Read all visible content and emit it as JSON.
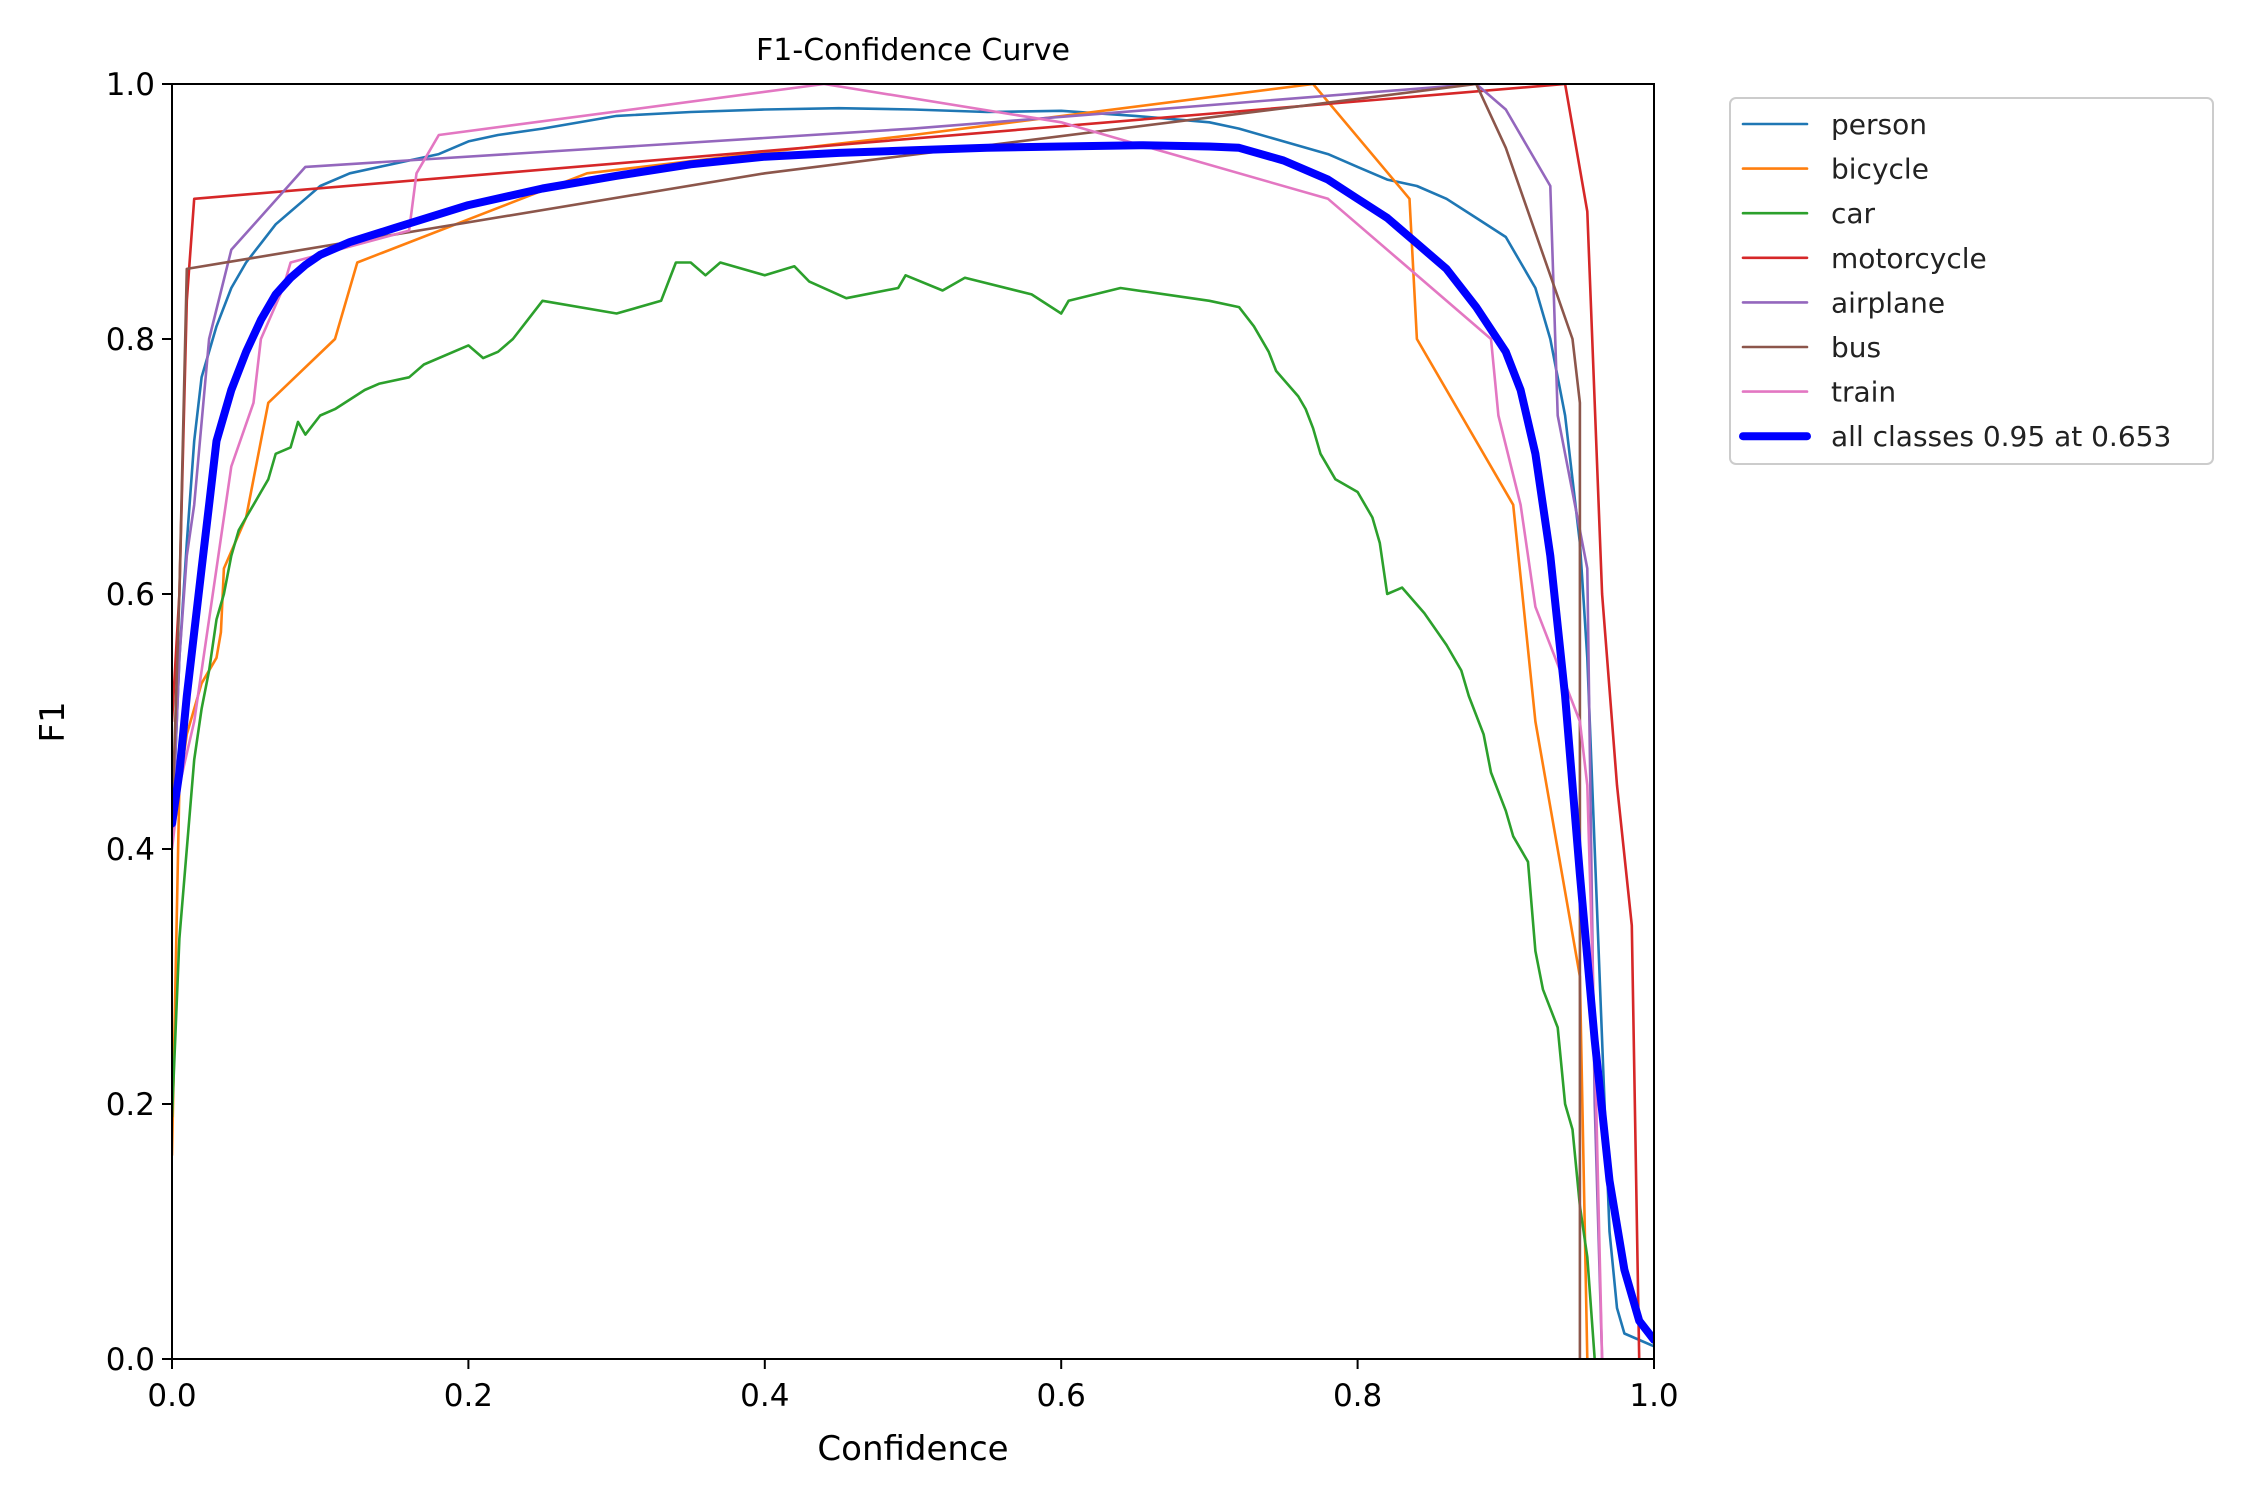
{
  "chart_data": {
    "type": "line",
    "title": "F1-Confidence Curve",
    "xlabel": "Confidence",
    "ylabel": "F1",
    "xlim": [
      0,
      1
    ],
    "ylim": [
      0,
      1
    ],
    "xticks": [
      "0.0",
      "0.2",
      "0.4",
      "0.6",
      "0.8",
      "1.0"
    ],
    "yticks": [
      "0.0",
      "0.2",
      "0.4",
      "0.6",
      "0.8",
      "1.0"
    ],
    "grid": false,
    "legend_position": "outside-top-right",
    "series": [
      {
        "name": "person",
        "color": "#1f77b4",
        "width": "thin",
        "points": [
          [
            0,
            0.41
          ],
          [
            0.005,
            0.55
          ],
          [
            0.01,
            0.64
          ],
          [
            0.015,
            0.72
          ],
          [
            0.02,
            0.77
          ],
          [
            0.03,
            0.81
          ],
          [
            0.04,
            0.84
          ],
          [
            0.05,
            0.86
          ],
          [
            0.06,
            0.875
          ],
          [
            0.07,
            0.89
          ],
          [
            0.08,
            0.9
          ],
          [
            0.09,
            0.91
          ],
          [
            0.1,
            0.92
          ],
          [
            0.12,
            0.93
          ],
          [
            0.14,
            0.935
          ],
          [
            0.16,
            0.94
          ],
          [
            0.18,
            0.945
          ],
          [
            0.2,
            0.955
          ],
          [
            0.22,
            0.96
          ],
          [
            0.25,
            0.965
          ],
          [
            0.3,
            0.975
          ],
          [
            0.35,
            0.978
          ],
          [
            0.4,
            0.98
          ],
          [
            0.45,
            0.981
          ],
          [
            0.5,
            0.98
          ],
          [
            0.55,
            0.978
          ],
          [
            0.6,
            0.979
          ],
          [
            0.65,
            0.975
          ],
          [
            0.7,
            0.97
          ],
          [
            0.72,
            0.965
          ],
          [
            0.75,
            0.955
          ],
          [
            0.78,
            0.945
          ],
          [
            0.8,
            0.935
          ],
          [
            0.82,
            0.925
          ],
          [
            0.84,
            0.92
          ],
          [
            0.86,
            0.91
          ],
          [
            0.88,
            0.895
          ],
          [
            0.9,
            0.88
          ],
          [
            0.91,
            0.86
          ],
          [
            0.92,
            0.84
          ],
          [
            0.93,
            0.8
          ],
          [
            0.94,
            0.74
          ],
          [
            0.95,
            0.64
          ],
          [
            0.955,
            0.55
          ],
          [
            0.96,
            0.4
          ],
          [
            0.965,
            0.25
          ],
          [
            0.97,
            0.1
          ],
          [
            0.975,
            0.04
          ],
          [
            0.98,
            0.02
          ],
          [
            1.0,
            0.01
          ]
        ]
      },
      {
        "name": "bicycle",
        "color": "#ff7f0e",
        "width": "thin",
        "points": [
          [
            0,
            0.16
          ],
          [
            0.005,
            0.45
          ],
          [
            0.01,
            0.49
          ],
          [
            0.02,
            0.53
          ],
          [
            0.03,
            0.55
          ],
          [
            0.033,
            0.57
          ],
          [
            0.035,
            0.62
          ],
          [
            0.05,
            0.66
          ],
          [
            0.065,
            0.75
          ],
          [
            0.11,
            0.8
          ],
          [
            0.125,
            0.86
          ],
          [
            0.28,
            0.93
          ],
          [
            0.5,
            0.96
          ],
          [
            0.77,
            1.0
          ],
          [
            0.835,
            0.91
          ],
          [
            0.84,
            0.8
          ],
          [
            0.905,
            0.67
          ],
          [
            0.92,
            0.5
          ],
          [
            0.95,
            0.3
          ],
          [
            0.955,
            0.0
          ]
        ]
      },
      {
        "name": "car",
        "color": "#2ca02c",
        "width": "thin",
        "points": [
          [
            0,
            0.19
          ],
          [
            0.005,
            0.33
          ],
          [
            0.01,
            0.4
          ],
          [
            0.015,
            0.47
          ],
          [
            0.02,
            0.51
          ],
          [
            0.025,
            0.54
          ],
          [
            0.03,
            0.58
          ],
          [
            0.035,
            0.6
          ],
          [
            0.04,
            0.63
          ],
          [
            0.045,
            0.65
          ],
          [
            0.05,
            0.66
          ],
          [
            0.055,
            0.67
          ],
          [
            0.06,
            0.68
          ],
          [
            0.065,
            0.69
          ],
          [
            0.07,
            0.71
          ],
          [
            0.08,
            0.715
          ],
          [
            0.085,
            0.735
          ],
          [
            0.09,
            0.725
          ],
          [
            0.1,
            0.74
          ],
          [
            0.11,
            0.745
          ],
          [
            0.13,
            0.76
          ],
          [
            0.14,
            0.765
          ],
          [
            0.16,
            0.77
          ],
          [
            0.17,
            0.78
          ],
          [
            0.2,
            0.795
          ],
          [
            0.21,
            0.785
          ],
          [
            0.22,
            0.79
          ],
          [
            0.23,
            0.8
          ],
          [
            0.24,
            0.815
          ],
          [
            0.25,
            0.83
          ],
          [
            0.3,
            0.82
          ],
          [
            0.33,
            0.83
          ],
          [
            0.335,
            0.845
          ],
          [
            0.34,
            0.86
          ],
          [
            0.35,
            0.86
          ],
          [
            0.36,
            0.85
          ],
          [
            0.37,
            0.86
          ],
          [
            0.4,
            0.85
          ],
          [
            0.42,
            0.857
          ],
          [
            0.43,
            0.845
          ],
          [
            0.455,
            0.832
          ],
          [
            0.49,
            0.84
          ],
          [
            0.495,
            0.85
          ],
          [
            0.52,
            0.838
          ],
          [
            0.535,
            0.848
          ],
          [
            0.58,
            0.835
          ],
          [
            0.6,
            0.82
          ],
          [
            0.605,
            0.83
          ],
          [
            0.64,
            0.84
          ],
          [
            0.7,
            0.83
          ],
          [
            0.72,
            0.825
          ],
          [
            0.73,
            0.81
          ],
          [
            0.74,
            0.79
          ],
          [
            0.745,
            0.775
          ],
          [
            0.76,
            0.755
          ],
          [
            0.765,
            0.745
          ],
          [
            0.77,
            0.73
          ],
          [
            0.775,
            0.71
          ],
          [
            0.785,
            0.69
          ],
          [
            0.8,
            0.68
          ],
          [
            0.81,
            0.66
          ],
          [
            0.815,
            0.64
          ],
          [
            0.82,
            0.6
          ],
          [
            0.83,
            0.605
          ],
          [
            0.845,
            0.585
          ],
          [
            0.86,
            0.56
          ],
          [
            0.87,
            0.54
          ],
          [
            0.875,
            0.52
          ],
          [
            0.885,
            0.49
          ],
          [
            0.89,
            0.46
          ],
          [
            0.9,
            0.43
          ],
          [
            0.905,
            0.41
          ],
          [
            0.915,
            0.39
          ],
          [
            0.92,
            0.32
          ],
          [
            0.925,
            0.29
          ],
          [
            0.935,
            0.26
          ],
          [
            0.94,
            0.2
          ],
          [
            0.945,
            0.18
          ],
          [
            0.95,
            0.12
          ],
          [
            0.955,
            0.08
          ],
          [
            0.96,
            0.0
          ]
        ]
      },
      {
        "name": "motorcycle",
        "color": "#d62728",
        "width": "thin",
        "points": [
          [
            0,
            0.5
          ],
          [
            0.005,
            0.6
          ],
          [
            0.01,
            0.83
          ],
          [
            0.015,
            0.91
          ],
          [
            0.94,
            1.0
          ],
          [
            0.955,
            0.9
          ],
          [
            0.965,
            0.6
          ],
          [
            0.975,
            0.45
          ],
          [
            0.985,
            0.34
          ],
          [
            0.99,
            0.0
          ]
        ]
      },
      {
        "name": "airplane",
        "color": "#9467bd",
        "width": "thin",
        "points": [
          [
            0,
            0.41
          ],
          [
            0.005,
            0.55
          ],
          [
            0.01,
            0.63
          ],
          [
            0.015,
            0.67
          ],
          [
            0.025,
            0.8
          ],
          [
            0.04,
            0.87
          ],
          [
            0.09,
            0.935
          ],
          [
            0.5,
            0.965
          ],
          [
            0.88,
            1.0
          ],
          [
            0.9,
            0.98
          ],
          [
            0.93,
            0.92
          ],
          [
            0.935,
            0.74
          ],
          [
            0.955,
            0.62
          ],
          [
            0.96,
            0.2
          ],
          [
            0.965,
            0.0
          ]
        ]
      },
      {
        "name": "bus",
        "color": "#8c564b",
        "width": "thin",
        "points": [
          [
            0,
            0.42
          ],
          [
            0.005,
            0.6
          ],
          [
            0.01,
            0.855
          ],
          [
            0.4,
            0.93
          ],
          [
            0.88,
            1.0
          ],
          [
            0.9,
            0.95
          ],
          [
            0.945,
            0.8
          ],
          [
            0.95,
            0.75
          ],
          [
            0.95,
            0.0
          ]
        ]
      },
      {
        "name": "train",
        "color": "#e377c2",
        "width": "thin",
        "points": [
          [
            0,
            0.4
          ],
          [
            0.005,
            0.45
          ],
          [
            0.015,
            0.5
          ],
          [
            0.03,
            0.62
          ],
          [
            0.04,
            0.7
          ],
          [
            0.055,
            0.75
          ],
          [
            0.06,
            0.8
          ],
          [
            0.075,
            0.84
          ],
          [
            0.08,
            0.86
          ],
          [
            0.16,
            0.885
          ],
          [
            0.165,
            0.93
          ],
          [
            0.18,
            0.96
          ],
          [
            0.44,
            1.0
          ],
          [
            0.6,
            0.97
          ],
          [
            0.78,
            0.91
          ],
          [
            0.89,
            0.8
          ],
          [
            0.895,
            0.74
          ],
          [
            0.91,
            0.67
          ],
          [
            0.92,
            0.59
          ],
          [
            0.95,
            0.5
          ],
          [
            0.955,
            0.45
          ],
          [
            0.96,
            0.25
          ],
          [
            0.965,
            0.0
          ]
        ]
      },
      {
        "name": "all classes 0.95 at 0.653",
        "color": "#0000ff",
        "width": "thick",
        "points": [
          [
            0,
            0.42
          ],
          [
            0.005,
            0.46
          ],
          [
            0.01,
            0.52
          ],
          [
            0.015,
            0.57
          ],
          [
            0.02,
            0.62
          ],
          [
            0.025,
            0.67
          ],
          [
            0.03,
            0.72
          ],
          [
            0.04,
            0.76
          ],
          [
            0.05,
            0.79
          ],
          [
            0.06,
            0.815
          ],
          [
            0.07,
            0.835
          ],
          [
            0.08,
            0.848
          ],
          [
            0.09,
            0.858
          ],
          [
            0.1,
            0.866
          ],
          [
            0.12,
            0.876
          ],
          [
            0.15,
            0.887
          ],
          [
            0.2,
            0.905
          ],
          [
            0.25,
            0.918
          ],
          [
            0.3,
            0.928
          ],
          [
            0.35,
            0.937
          ],
          [
            0.4,
            0.943
          ],
          [
            0.45,
            0.946
          ],
          [
            0.5,
            0.948
          ],
          [
            0.55,
            0.95
          ],
          [
            0.6,
            0.951
          ],
          [
            0.653,
            0.952
          ],
          [
            0.7,
            0.951
          ],
          [
            0.72,
            0.95
          ],
          [
            0.75,
            0.94
          ],
          [
            0.78,
            0.925
          ],
          [
            0.8,
            0.91
          ],
          [
            0.82,
            0.895
          ],
          [
            0.84,
            0.875
          ],
          [
            0.86,
            0.855
          ],
          [
            0.88,
            0.825
          ],
          [
            0.9,
            0.79
          ],
          [
            0.91,
            0.76
          ],
          [
            0.92,
            0.71
          ],
          [
            0.93,
            0.63
          ],
          [
            0.94,
            0.52
          ],
          [
            0.95,
            0.38
          ],
          [
            0.96,
            0.25
          ],
          [
            0.97,
            0.14
          ],
          [
            0.98,
            0.07
          ],
          [
            0.99,
            0.03
          ],
          [
            1.0,
            0.015
          ]
        ]
      }
    ]
  }
}
